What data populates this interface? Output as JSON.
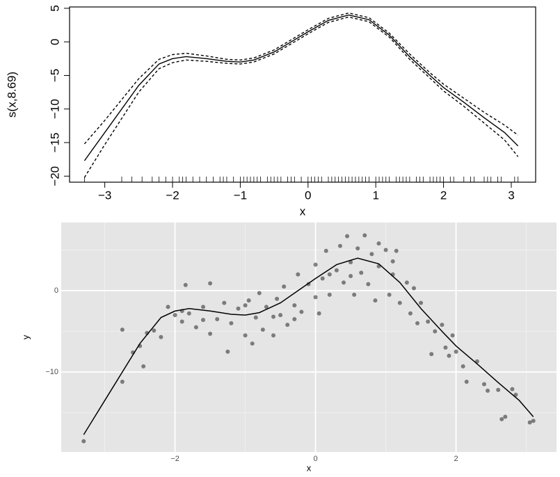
{
  "chart_data": [
    {
      "type": "line",
      "xlabel": "x",
      "ylabel": "s(x,8.69)",
      "xlim": [
        -3.52,
        3.36
      ],
      "ylim": [
        -20.9,
        5.2
      ],
      "xticks": [
        {
          "value": -3,
          "label": "−3"
        },
        {
          "value": -2,
          "label": "−2"
        },
        {
          "value": -1,
          "label": "−1"
        },
        0,
        1,
        2,
        3
      ],
      "yticks": [
        5,
        0,
        {
          "value": -5,
          "label": "−5"
        },
        {
          "value": -10,
          "label": "−10"
        },
        {
          "value": -15,
          "label": "−15"
        },
        {
          "value": -20,
          "label": "−20"
        }
      ],
      "x": [
        -3.3,
        -3.0,
        -2.5,
        -2.2,
        -2.0,
        -1.8,
        -1.5,
        -1.2,
        -1.0,
        -0.8,
        -0.5,
        -0.2,
        0,
        0.3,
        0.6,
        0.9,
        1.2,
        1.5,
        1.8,
        2.0,
        2.3,
        2.6,
        2.9,
        3.1
      ],
      "series": [
        {
          "color": "#000000",
          "style": "solid",
          "values": [
            -17.7,
            -13.5,
            -6.5,
            -3.3,
            -2.5,
            -2.2,
            -2.5,
            -2.9,
            -3.0,
            -2.7,
            -1.5,
            0.3,
            1.5,
            3.2,
            4.0,
            3.3,
            1.0,
            -2.2,
            -5.0,
            -6.8,
            -9.0,
            -11.3,
            -13.5,
            -15.5
          ]
        },
        {
          "color": "#000000",
          "style": "dashed",
          "values": [
            -15.2,
            -11.7,
            -5.5,
            -2.6,
            -1.9,
            -1.7,
            -2.1,
            -2.6,
            -2.7,
            -2.4,
            -1.2,
            0.6,
            1.8,
            3.5,
            4.3,
            3.6,
            1.3,
            -1.8,
            -4.6,
            -6.3,
            -8.4,
            -10.5,
            -12.4,
            -13.9
          ]
        },
        {
          "color": "#000000",
          "style": "dashed",
          "values": [
            -20.2,
            -15.3,
            -7.5,
            -4.0,
            -3.1,
            -2.7,
            -2.9,
            -3.2,
            -3.3,
            -3.0,
            -1.8,
            0.0,
            1.2,
            2.9,
            3.7,
            3.0,
            0.7,
            -2.6,
            -5.4,
            -7.3,
            -9.6,
            -12.1,
            -14.6,
            -17.1
          ]
        }
      ],
      "rug": [
        -3.3,
        -2.75,
        -2.6,
        -2.45,
        -2.3,
        -2.2,
        -2.1,
        -2.0,
        -1.9,
        -1.85,
        -1.8,
        -1.7,
        -1.6,
        -1.5,
        -1.4,
        -1.3,
        -1.25,
        -1.2,
        -1.1,
        -1.0,
        -0.95,
        -0.9,
        -0.85,
        -0.8,
        -0.75,
        -0.7,
        -0.6,
        -0.55,
        -0.5,
        -0.45,
        -0.4,
        -0.3,
        -0.25,
        -0.2,
        -0.1,
        0,
        0.05,
        0.1,
        0.15,
        0.2,
        0.3,
        0.35,
        0.4,
        0.45,
        0.5,
        0.55,
        0.6,
        0.65,
        0.7,
        0.75,
        0.8,
        0.85,
        0.9,
        1.0,
        1.05,
        1.1,
        1.15,
        1.2,
        1.3,
        1.35,
        1.4,
        1.45,
        1.5,
        1.6,
        1.65,
        1.7,
        1.8,
        1.85,
        1.9,
        1.95,
        2.0,
        2.1,
        2.15,
        2.3,
        2.4,
        2.45,
        2.6,
        2.65,
        2.7,
        2.8,
        2.85,
        3.05,
        3.1
      ]
    },
    {
      "type": "scatter",
      "xlabel": "x",
      "ylabel": "y",
      "xlim": [
        -3.62,
        3.43
      ],
      "ylim": [
        -19.83,
        8.38
      ],
      "xticks": [
        {
          "value": -2,
          "label": "−2"
        },
        0,
        2
      ],
      "yticks": [
        0,
        {
          "value": -10,
          "label": "−10"
        }
      ],
      "color": "#333333",
      "x": [
        -3.3,
        -2.75,
        -2.75,
        -2.6,
        -2.5,
        -2.45,
        -2.4,
        -2.3,
        -2.2,
        -2.1,
        -2.0,
        -1.9,
        -1.85,
        -1.8,
        -1.7,
        -1.6,
        -1.5,
        -1.5,
        -1.4,
        -1.3,
        -1.25,
        -1.2,
        -1.1,
        -1.0,
        -0.95,
        -0.9,
        -0.85,
        -0.8,
        -0.75,
        -0.7,
        -0.6,
        -0.55,
        -0.5,
        -0.45,
        -0.4,
        -0.3,
        -0.25,
        -0.2,
        -0.1,
        0,
        0.05,
        0.1,
        0.15,
        0.2,
        0.3,
        0.35,
        0.4,
        0.45,
        0.5,
        0.55,
        0.6,
        0.65,
        0.7,
        0.75,
        0.8,
        0.85,
        0.9,
        1.0,
        1.05,
        1.1,
        1.15,
        1.2,
        1.3,
        1.35,
        1.4,
        1.45,
        1.5,
        1.6,
        1.65,
        1.7,
        1.8,
        1.85,
        1.9,
        1.95,
        2.0,
        2.1,
        2.15,
        2.3,
        2.4,
        2.45,
        2.6,
        2.65,
        2.7,
        2.8,
        2.85,
        3.05,
        3.1,
        -1.0,
        -0.6,
        -0.3,
        0.2,
        0.5,
        0.9,
        1.1,
        -1.6,
        -1.9,
        0.0
      ],
      "values": [
        -18.5,
        -11.2,
        -4.8,
        -7.6,
        -6.8,
        -9.3,
        -5.2,
        -4.9,
        -5.7,
        -2.0,
        -3.0,
        -3.8,
        0.7,
        -2.8,
        -4.5,
        -2.0,
        0.9,
        -5.3,
        -3.5,
        -1.5,
        -7.5,
        -4.0,
        -2.2,
        -5.5,
        -1.2,
        -6.5,
        -3.3,
        -0.3,
        -4.8,
        -2.0,
        -5.5,
        -1.0,
        -3.0,
        0.5,
        -4.2,
        -1.8,
        2.0,
        -2.6,
        0.8,
        3.2,
        -2.8,
        1.5,
        4.9,
        -0.5,
        2.5,
        5.5,
        1.0,
        6.7,
        3.5,
        -0.5,
        5.2,
        2.2,
        6.8,
        0.8,
        4.5,
        -1.2,
        3.0,
        5.0,
        -0.5,
        2.0,
        4.9,
        -1.5,
        1.0,
        -2.8,
        0.3,
        -4.0,
        -1.5,
        -3.8,
        -7.8,
        -5.0,
        -4.2,
        -7.0,
        -8.0,
        -5.5,
        -7.5,
        -9.3,
        -11.2,
        -8.7,
        -11.5,
        -12.3,
        -12.2,
        -15.8,
        -15.5,
        -12.1,
        -12.8,
        -16.2,
        -16.0,
        -1.8,
        -3.2,
        -3.5,
        2.0,
        1.8,
        5.8,
        3.6,
        -3.6,
        -2.5,
        -0.8
      ],
      "line": {
        "x": [
          -3.3,
          -3.0,
          -2.5,
          -2.2,
          -2.0,
          -1.8,
          -1.5,
          -1.2,
          -1.0,
          -0.8,
          -0.5,
          -0.2,
          0,
          0.3,
          0.6,
          0.9,
          1.2,
          1.5,
          1.8,
          2.0,
          2.3,
          2.6,
          2.9,
          3.1
        ],
        "values": [
          -17.7,
          -13.5,
          -6.5,
          -3.3,
          -2.5,
          -2.2,
          -2.5,
          -2.9,
          -3.0,
          -2.7,
          -1.5,
          0.3,
          1.5,
          3.2,
          4.0,
          3.3,
          1.0,
          -2.2,
          -5.0,
          -6.8,
          -9.0,
          -11.3,
          -13.5,
          -15.5
        ]
      }
    }
  ]
}
